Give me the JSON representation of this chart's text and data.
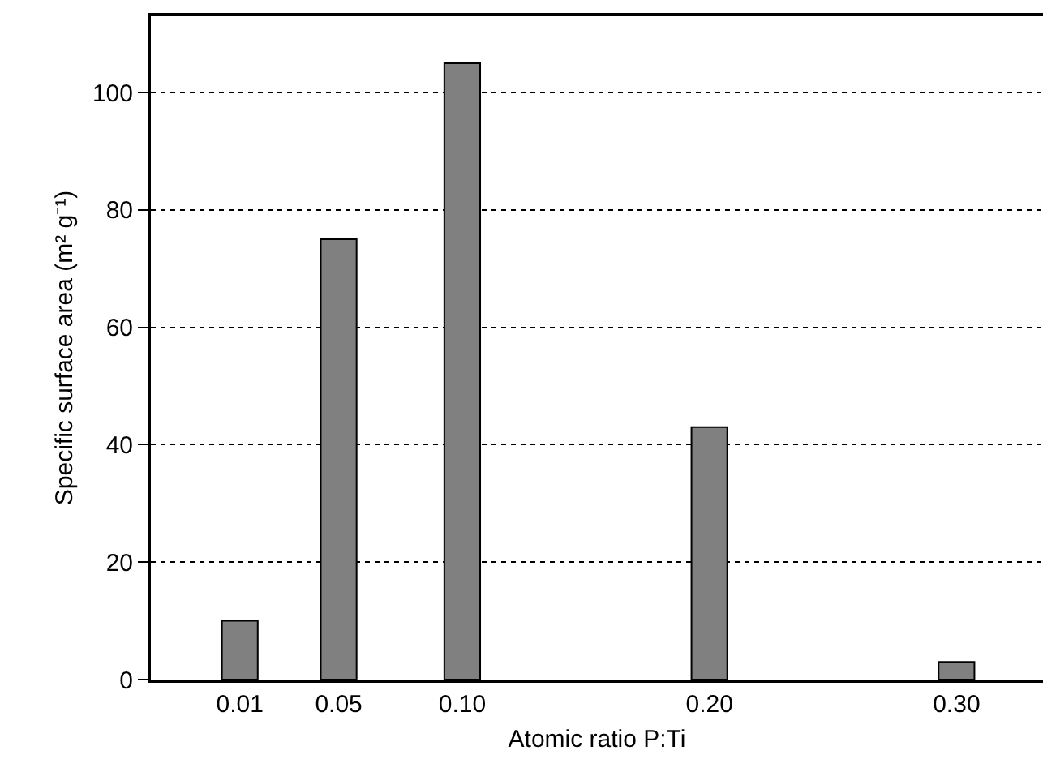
{
  "chart_data": {
    "type": "bar",
    "xlabel": "Atomic ratio P:Ti",
    "ylabel": "Specific surface area (m² g⁻¹)",
    "x": [
      0.01,
      0.05,
      0.1,
      0.2,
      0.3
    ],
    "values": [
      10,
      75,
      105,
      43,
      3
    ],
    "color": "#808080",
    "xlim": [
      -0.026,
      0.335
    ],
    "xticks": [
      {
        "value": 0.01,
        "label": "0.01"
      },
      {
        "value": 0.05,
        "label": "0.05"
      },
      {
        "value": 0.1,
        "label": "0.10"
      },
      {
        "value": 0.2,
        "label": "0.20"
      },
      {
        "value": 0.3,
        "label": "0.30"
      }
    ],
    "ylim": [
      0,
      113
    ],
    "yticks": [
      0,
      20,
      40,
      60,
      80,
      100
    ],
    "grid": "y",
    "legend": false
  }
}
